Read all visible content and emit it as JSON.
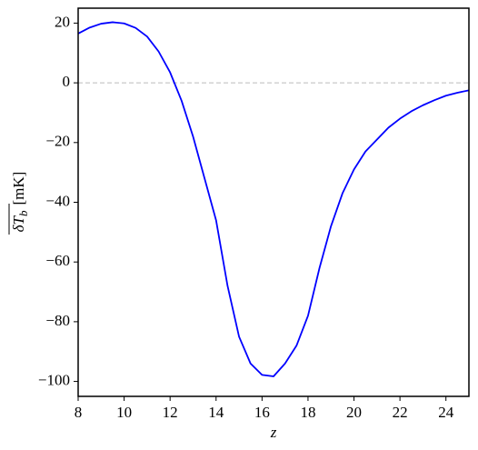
{
  "chart_data": {
    "type": "line",
    "xlabel": "z",
    "ylabel": {
      "main": "δT",
      "sub": "b",
      "unit": "[mK]"
    },
    "x": [
      8,
      8.5,
      9,
      9.5,
      10,
      10.5,
      11,
      11.5,
      12,
      12.5,
      13,
      13.5,
      14,
      14.5,
      15,
      15.5,
      16,
      16.5,
      17,
      17.5,
      18,
      18.5,
      19,
      19.5,
      20,
      20.5,
      21,
      21.5,
      22,
      22.5,
      23,
      23.5,
      24,
      24.5,
      25
    ],
    "series": [
      {
        "color": "#0000ff",
        "values": [
          16.5,
          18.5,
          19.8,
          20.3,
          19.9,
          18.4,
          15.5,
          10.5,
          3.5,
          -6,
          -18,
          -32,
          -46,
          -68,
          -85,
          -94,
          -97.8,
          -98.3,
          -94,
          -88,
          -78,
          -62,
          -48,
          -37,
          -29,
          -23,
          -19,
          -15,
          -12,
          -9.5,
          -7.5,
          -5.8,
          -4.3,
          -3.3,
          -2.5
        ]
      }
    ],
    "xlim": [
      8,
      25
    ],
    "ylim": [
      -105,
      25
    ],
    "xticks": [
      8,
      10,
      12,
      14,
      16,
      18,
      20,
      22,
      24
    ],
    "yticks": [
      {
        "value": -100,
        "label": "−100"
      },
      {
        "value": -80,
        "label": "−80"
      },
      {
        "value": -60,
        "label": "−60"
      },
      {
        "value": -40,
        "label": "−40"
      },
      {
        "value": -20,
        "label": "−20"
      },
      0,
      20
    ],
    "hline": {
      "value": 0,
      "color": "#bbbbbb"
    }
  }
}
